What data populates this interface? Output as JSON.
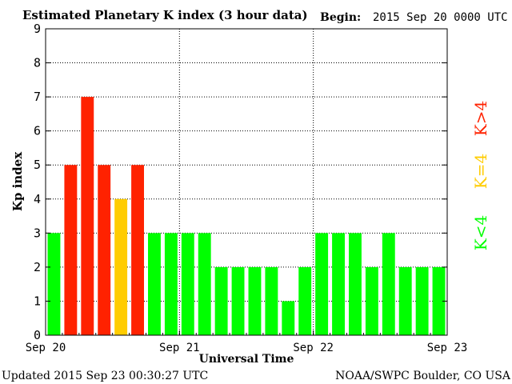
{
  "header": {
    "title": "Estimated Planetary K index (3 hour data)",
    "begin_label": "Begin:",
    "begin_value": "2015 Sep 20 0000 UTC"
  },
  "footer": {
    "updated": "Updated 2015 Sep 23 00:30:27 UTC",
    "source": "NOAA/SWPC Boulder, CO USA"
  },
  "legend": {
    "high": "K>4",
    "equal": "K=4",
    "low": "K<4"
  },
  "colors": {
    "low": "#00ff00",
    "equal": "#ffcc00",
    "high": "#ff2200",
    "axis": "#000000",
    "grid": "#000000"
  },
  "chart_data": {
    "type": "bar",
    "ylabel": "Kp index",
    "xlabel": "Universal Time",
    "ylim": [
      0,
      9
    ],
    "yticks": [
      0,
      1,
      2,
      3,
      4,
      5,
      6,
      7,
      8,
      9
    ],
    "xticks": [
      "Sep 20",
      "Sep 21",
      "Sep 22",
      "Sep 23"
    ],
    "grid": "dotted",
    "interval_hours": 3,
    "values": [
      3,
      5,
      7,
      5,
      4,
      5,
      3,
      3,
      3,
      3,
      2,
      2,
      2,
      2,
      1,
      2,
      3,
      3,
      3,
      2,
      3,
      2,
      2,
      2
    ]
  }
}
